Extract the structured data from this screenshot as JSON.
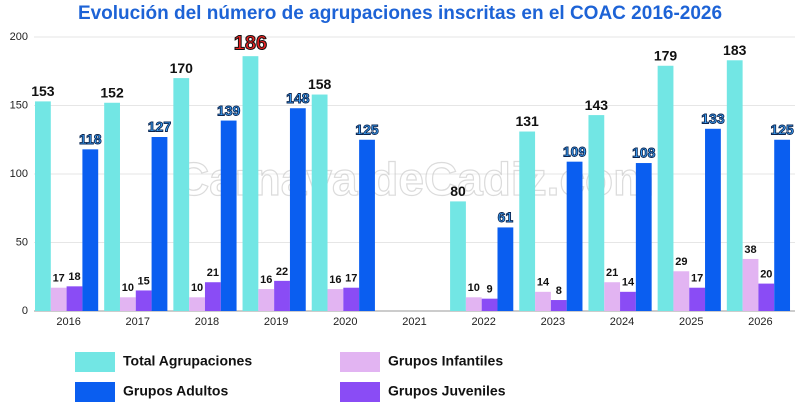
{
  "chart_data": {
    "type": "bar",
    "title": "Evolución del número de agrupaciones inscritas en el COAC 2016-2026",
    "watermark": "CarnavaldeCadiz.com",
    "categories": [
      "2016",
      "2017",
      "2018",
      "2019",
      "2020",
      "2021",
      "2022",
      "2023",
      "2024",
      "2025",
      "2026"
    ],
    "series": [
      {
        "name": "Total Agrupaciones",
        "color": "#72e6e4",
        "values": [
          153,
          152,
          170,
          186,
          158,
          null,
          80,
          131,
          143,
          179,
          183
        ]
      },
      {
        "name": "Grupos Infantiles",
        "color": "#e2b4f2",
        "values": [
          17,
          10,
          10,
          16,
          16,
          null,
          10,
          14,
          21,
          29,
          38
        ]
      },
      {
        "name": "Grupos Juveniles",
        "color": "#8a4cf5",
        "values": [
          18,
          15,
          21,
          22,
          17,
          null,
          9,
          8,
          14,
          17,
          20
        ]
      },
      {
        "name": "Grupos Adultos",
        "color": "#0a5ef0",
        "values": [
          118,
          127,
          139,
          148,
          125,
          null,
          61,
          109,
          108,
          133,
          125
        ]
      }
    ],
    "highlight": {
      "series": 0,
      "index": 3,
      "color": "#e52222"
    },
    "ylim": [
      0,
      200
    ],
    "yticks": [
      0,
      50,
      100,
      150,
      200
    ],
    "grid": true
  }
}
